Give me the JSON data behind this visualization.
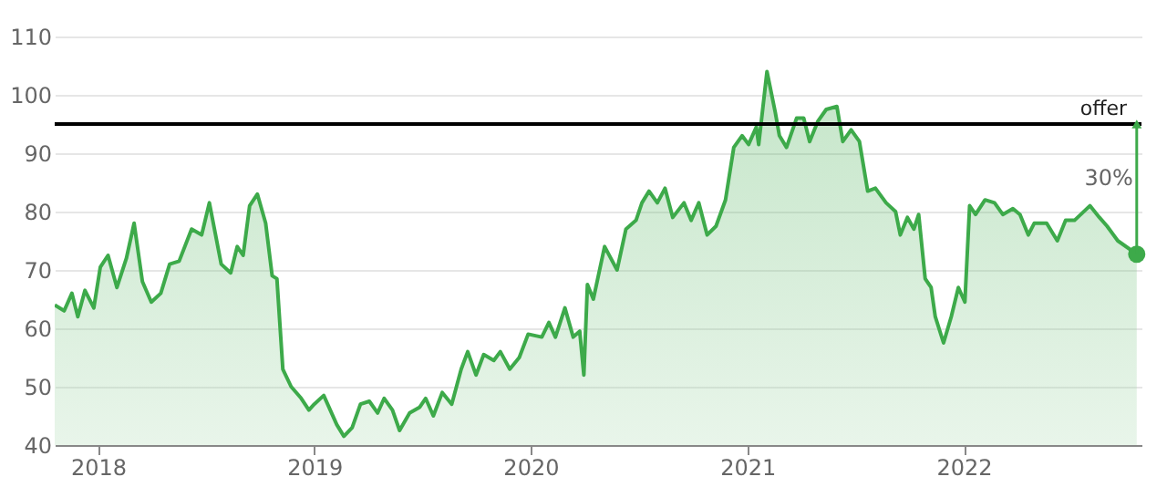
{
  "chart_data": {
    "type": "area",
    "x": [
      "2017-10-20",
      "2017-11-05",
      "2017-11-18",
      "2017-11-28",
      "2017-12-10",
      "2017-12-25",
      "2018-01-05",
      "2018-01-18",
      "2018-02-02",
      "2018-02-18",
      "2018-03-03",
      "2018-03-17",
      "2018-04-01",
      "2018-04-17",
      "2018-05-02",
      "2018-05-18",
      "2018-06-08",
      "2018-06-25",
      "2018-07-08",
      "2018-07-28",
      "2018-08-13",
      "2018-08-24",
      "2018-09-03",
      "2018-09-14",
      "2018-09-27",
      "2018-10-11",
      "2018-10-22",
      "2018-10-30",
      "2018-11-09",
      "2018-11-23",
      "2018-12-10",
      "2018-12-23",
      "2019-01-01",
      "2019-01-17",
      "2019-02-08",
      "2019-02-20",
      "2019-03-06",
      "2019-03-20",
      "2019-04-04",
      "2019-04-18",
      "2019-04-29",
      "2019-05-13",
      "2019-05-25",
      "2019-06-11",
      "2019-06-28",
      "2019-07-08",
      "2019-07-21",
      "2019-08-05",
      "2019-08-21",
      "2019-09-06",
      "2019-09-17",
      "2019-10-01",
      "2019-10-14",
      "2019-10-31",
      "2019-11-11",
      "2019-11-27",
      "2019-12-13",
      "2019-12-28",
      "2020-01-20",
      "2020-02-01",
      "2020-02-12",
      "2020-02-28",
      "2020-03-13",
      "2020-03-24",
      "2020-03-31",
      "2020-04-06",
      "2020-04-16",
      "2020-05-05",
      "2020-05-26",
      "2020-06-10",
      "2020-06-27",
      "2020-07-07",
      "2020-07-19",
      "2020-08-02",
      "2020-08-15",
      "2020-08-28",
      "2020-09-16",
      "2020-09-28",
      "2020-10-11",
      "2020-10-25",
      "2020-11-09",
      "2020-11-25",
      "2020-12-09",
      "2020-12-23",
      "2021-01-03",
      "2021-01-16",
      "2021-01-20",
      "2021-02-03",
      "2021-02-17",
      "2021-02-24",
      "2021-03-08",
      "2021-03-25",
      "2021-04-06",
      "2021-04-16",
      "2021-04-30",
      "2021-05-14",
      "2021-06-01",
      "2021-06-11",
      "2021-06-25",
      "2021-07-09",
      "2021-07-23",
      "2021-08-05",
      "2021-08-23",
      "2021-09-08",
      "2021-09-16",
      "2021-09-28",
      "2021-10-09",
      "2021-10-17",
      "2021-10-28",
      "2021-11-07",
      "2021-11-14",
      "2021-11-28",
      "2021-12-11",
      "2021-12-23",
      "2022-01-03",
      "2022-01-11",
      "2022-01-21",
      "2022-02-06",
      "2022-02-22",
      "2022-03-08",
      "2022-03-25",
      "2022-04-06",
      "2022-04-20",
      "2022-04-30",
      "2022-05-21",
      "2022-06-08",
      "2022-06-22",
      "2022-07-07",
      "2022-08-02",
      "2022-08-18",
      "2022-08-31",
      "2022-09-18",
      "2022-10-20"
    ],
    "series": [
      {
        "color": "#3daa4a",
        "values": [
          64,
          63,
          66,
          62,
          66.5,
          63.5,
          70.5,
          72.5,
          67,
          72,
          78,
          68,
          64.5,
          66,
          71,
          71.5,
          77,
          76,
          81.5,
          71,
          69.5,
          74,
          72.5,
          81,
          83,
          78,
          69,
          68.5,
          53,
          50,
          48,
          46,
          47,
          48.5,
          43.5,
          41.5,
          43,
          47,
          47.5,
          45.5,
          48,
          46,
          42.5,
          45.5,
          46.5,
          48,
          45,
          49,
          47,
          53,
          56,
          52,
          55.5,
          54.5,
          56,
          53,
          55,
          59,
          58.5,
          61,
          58.5,
          63.5,
          58.5,
          59.5,
          52,
          67.5,
          65,
          74,
          70,
          77,
          78.5,
          81.5,
          83.5,
          81.5,
          84,
          79,
          81.5,
          78.5,
          81.5,
          76,
          77.5,
          82,
          91,
          93,
          91.5,
          94.5,
          91.5,
          104,
          97,
          93,
          91,
          96,
          96,
          92,
          95.5,
          97.5,
          98,
          92,
          94,
          92,
          83.5,
          84,
          81.5,
          80,
          76,
          79,
          77,
          79.5,
          68.5,
          67,
          62,
          57.5,
          62,
          67,
          64.5,
          81,
          79.5,
          82,
          81.5,
          79.5,
          80.5,
          79.5,
          76,
          78,
          78,
          75,
          78.5,
          78.5,
          81,
          79,
          77.5,
          75,
          72.7
        ]
      }
    ],
    "xlim": [
      "2017-10-20",
      "2022-10-28"
    ],
    "xticks": [
      {
        "value": "2018-01-01",
        "label": "2018"
      },
      {
        "value": "2019-01-01",
        "label": "2019"
      },
      {
        "value": "2020-01-01",
        "label": "2020"
      },
      {
        "value": "2021-01-01",
        "label": "2021"
      },
      {
        "value": "2022-01-01",
        "label": "2022"
      }
    ],
    "ylim": [
      40,
      110
    ],
    "yticks": [
      40,
      50,
      60,
      70,
      80,
      90,
      100,
      110
    ],
    "grid": "y",
    "ref_lines": [
      {
        "axis": "y",
        "value": 95,
        "label": "offer",
        "color": "#000000"
      }
    ],
    "annotations": [
      "30%"
    ]
  }
}
